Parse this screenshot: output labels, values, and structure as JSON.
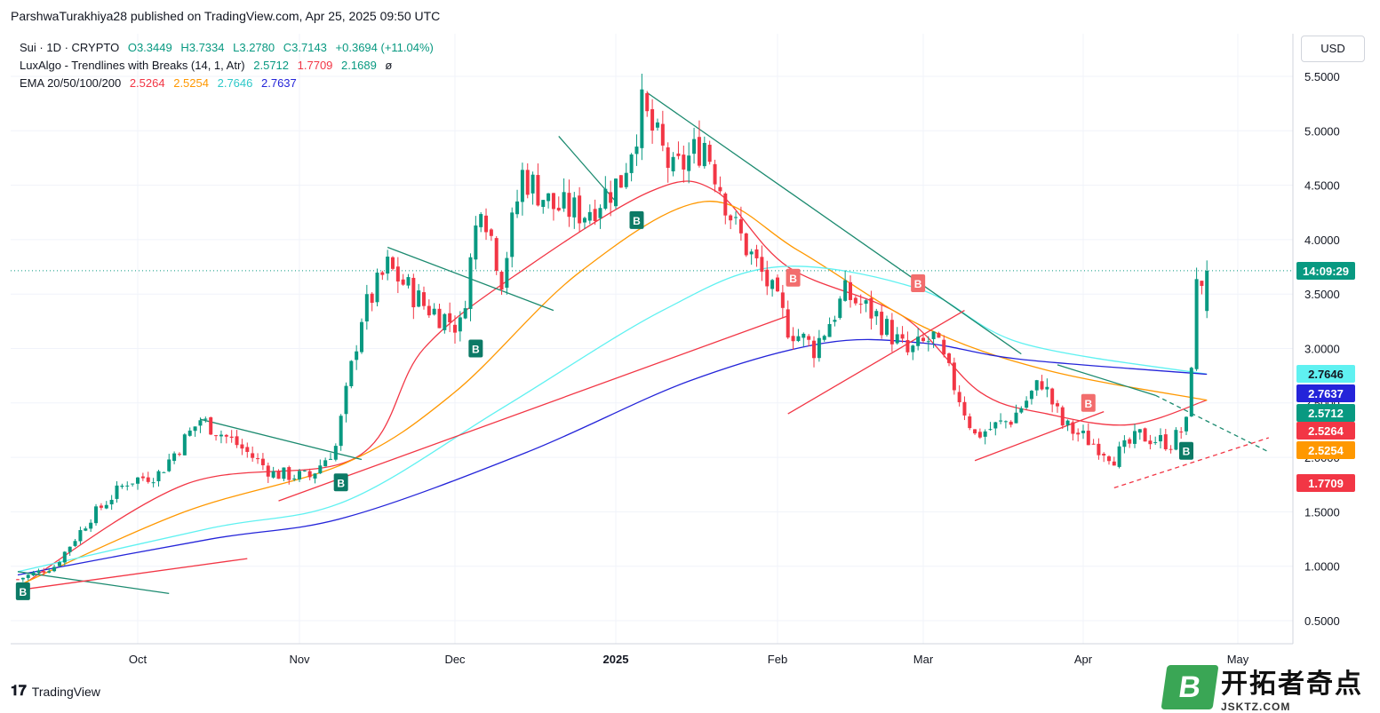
{
  "header": {
    "publisher": "ParshwaTurakhiya28 published on TradingView.com, Apr 25, 2025 09:50 UTC"
  },
  "legend": {
    "symbol": "Sui · 1D · CRYPTO",
    "open": "O3.3449",
    "high": "H3.7334",
    "low": "L3.2780",
    "close": "C3.7143",
    "change": "+0.3694 (+11.04%)",
    "indicator1_name": "LuxAlgo - Trendlines with Breaks (14, 1, Atr)",
    "ind1_v1": "2.5712",
    "ind1_v2": "1.7709",
    "ind1_v3": "2.1689",
    "ind1_sym": "ø",
    "indicator2_name": "EMA 20/50/100/200",
    "ema20": "2.5264",
    "ema50": "2.5254",
    "ema100": "2.7646",
    "ema200": "2.7637"
  },
  "currency": "USD",
  "branding": {
    "logo_text": "TradingView"
  },
  "watermark": {
    "logo_letter": "B",
    "title": "开拓者奇点",
    "subtitle": "JSKTZ.COM"
  },
  "colors": {
    "up": "#089981",
    "down": "#f23645",
    "ema20": "#f23645",
    "ema50": "#ff9800",
    "ema100": "#5ff1f1",
    "ema200": "#2424d9",
    "trend_down": "#1b8a6f",
    "trend_up": "#f23645"
  },
  "chart_data": {
    "type": "candlestick",
    "symbol": "Sui",
    "timeframe": "1D",
    "x_tick_labels": [
      "Oct",
      "Nov",
      "Dec",
      "2025",
      "Feb",
      "Mar",
      "Apr",
      "May"
    ],
    "y_ticks": [
      "0.5000",
      "1.0000",
      "1.5000",
      "2.0000",
      "2.5000",
      "3.0000",
      "3.5000",
      "4.0000",
      "4.5000",
      "5.0000",
      "5.5000"
    ],
    "ylim": [
      0.2,
      5.8
    ],
    "price_labels": [
      {
        "text": "14:09:29",
        "value": 3.7143,
        "color": "#089981"
      },
      {
        "text": "2.7646",
        "value": 2.7646,
        "color": "#5ff1f1"
      },
      {
        "text": "2.7637",
        "value": 2.7637,
        "color": "#2424d9"
      },
      {
        "text": "2.5712",
        "value": 2.5712,
        "color": "#089981"
      },
      {
        "text": "2.5264",
        "value": 2.5264,
        "color": "#f23645"
      },
      {
        "text": "2.5254",
        "value": 2.5254,
        "color": "#ff9800"
      },
      {
        "text": "1.7709",
        "value": 1.7709,
        "color": "#f23645"
      }
    ],
    "price_line": 3.7143,
    "price_path": [
      [
        "2024-09-08",
        0.88
      ],
      [
        "2024-09-15",
        1.0
      ],
      [
        "2024-09-22",
        1.45
      ],
      [
        "2024-09-29",
        1.78
      ],
      [
        "2024-10-05",
        1.85
      ],
      [
        "2024-10-13",
        2.35
      ],
      [
        "2024-10-20",
        2.12
      ],
      [
        "2024-10-27",
        1.85
      ],
      [
        "2024-11-03",
        1.82
      ],
      [
        "2024-11-08",
        2.1
      ],
      [
        "2024-11-13",
        3.3
      ],
      [
        "2024-11-18",
        3.75
      ],
      [
        "2024-11-25",
        3.4
      ],
      [
        "2024-12-02",
        3.2
      ],
      [
        "2024-12-06",
        4.4
      ],
      [
        "2024-12-10",
        3.65
      ],
      [
        "2024-12-14",
        4.6
      ],
      [
        "2024-12-20",
        4.3
      ],
      [
        "2024-12-26",
        4.25
      ],
      [
        "2025-01-02",
        4.55
      ],
      [
        "2025-01-06",
        5.2
      ],
      [
        "2025-01-12",
        4.6
      ],
      [
        "2025-01-18",
        4.9
      ],
      [
        "2025-01-24",
        4.1
      ],
      [
        "2025-01-30",
        3.6
      ],
      [
        "2025-02-03",
        3.2
      ],
      [
        "2025-02-08",
        3.0
      ],
      [
        "2025-02-14",
        3.5
      ],
      [
        "2025-02-20",
        3.3
      ],
      [
        "2025-02-26",
        2.95
      ],
      [
        "2025-03-03",
        3.1
      ],
      [
        "2025-03-08",
        2.55
      ],
      [
        "2025-03-11",
        2.2
      ],
      [
        "2025-03-18",
        2.35
      ],
      [
        "2025-03-24",
        2.7
      ],
      [
        "2025-03-28",
        2.3
      ],
      [
        "2025-04-04",
        2.1
      ],
      [
        "2025-04-07",
        2.0
      ],
      [
        "2025-04-12",
        2.2
      ],
      [
        "2025-04-18",
        2.13
      ],
      [
        "2025-04-21",
        2.3
      ],
      [
        "2025-04-22",
        2.9
      ],
      [
        "2025-04-23",
        3.55
      ],
      [
        "2025-04-25",
        3.7143
      ]
    ],
    "series": [
      {
        "name": "EMA 20",
        "color": "#f23645",
        "points": [
          [
            "2024-09-08",
            0.8
          ],
          [
            "2024-10-10",
            1.75
          ],
          [
            "2024-11-12",
            2.0
          ],
          [
            "2024-11-25",
            3.0
          ],
          [
            "2024-12-15",
            3.75
          ],
          [
            "2025-01-08",
            4.45
          ],
          [
            "2025-01-20",
            4.45
          ],
          [
            "2025-02-03",
            3.75
          ],
          [
            "2025-02-25",
            3.3
          ],
          [
            "2025-03-12",
            2.6
          ],
          [
            "2025-03-25",
            2.4
          ],
          [
            "2025-04-10",
            2.3
          ],
          [
            "2025-04-25",
            2.5264
          ]
        ]
      },
      {
        "name": "EMA 50",
        "color": "#ff9800",
        "points": [
          [
            "2024-09-08",
            0.82
          ],
          [
            "2024-10-10",
            1.5
          ],
          [
            "2024-11-10",
            1.95
          ],
          [
            "2024-12-01",
            2.6
          ],
          [
            "2024-12-25",
            3.7
          ],
          [
            "2025-01-18",
            4.35
          ],
          [
            "2025-02-05",
            3.9
          ],
          [
            "2025-03-01",
            3.2
          ],
          [
            "2025-03-25",
            2.8
          ],
          [
            "2025-04-25",
            2.5254
          ]
        ]
      },
      {
        "name": "EMA 100",
        "color": "#5ff1f1",
        "points": [
          [
            "2024-09-08",
            0.95
          ],
          [
            "2024-10-15",
            1.35
          ],
          [
            "2024-11-10",
            1.6
          ],
          [
            "2024-12-10",
            2.45
          ],
          [
            "2025-01-10",
            3.35
          ],
          [
            "2025-02-01",
            3.75
          ],
          [
            "2025-02-28",
            3.55
          ],
          [
            "2025-03-20",
            3.05
          ],
          [
            "2025-04-25",
            2.7646
          ]
        ]
      },
      {
        "name": "EMA 200",
        "color": "#2424d9",
        "points": [
          [
            "2024-09-08",
            0.92
          ],
          [
            "2024-10-15",
            1.25
          ],
          [
            "2024-11-10",
            1.45
          ],
          [
            "2024-12-15",
            2.05
          ],
          [
            "2025-01-15",
            2.7
          ],
          [
            "2025-02-10",
            3.05
          ],
          [
            "2025-03-01",
            3.05
          ],
          [
            "2025-03-20",
            2.9
          ],
          [
            "2025-04-25",
            2.7637
          ]
        ]
      }
    ],
    "trendlines": [
      {
        "dir": "down",
        "from": [
          "2024-09-08",
          0.95
        ],
        "to": [
          "2024-10-07",
          0.75
        ]
      },
      {
        "dir": "up",
        "from": [
          "2024-09-08",
          0.78
        ],
        "to": [
          "2024-10-22",
          1.07
        ]
      },
      {
        "dir": "down",
        "from": [
          "2024-10-13",
          2.35
        ],
        "to": [
          "2024-11-13",
          1.98
        ]
      },
      {
        "dir": "up",
        "from": [
          "2024-10-28",
          1.6
        ],
        "to": [
          "2025-02-03",
          3.3
        ]
      },
      {
        "dir": "down",
        "from": [
          "2024-11-18",
          3.93
        ],
        "to": [
          "2024-12-20",
          3.35
        ]
      },
      {
        "dir": "down",
        "from": [
          "2024-12-21",
          4.95
        ],
        "to": [
          "2025-01-01",
          4.35
        ]
      },
      {
        "dir": "down",
        "from": [
          "2025-01-07",
          5.35
        ],
        "to": [
          "2025-03-20",
          2.95
        ]
      },
      {
        "dir": "up",
        "from": [
          "2025-02-03",
          2.4
        ],
        "to": [
          "2025-03-09",
          3.35
        ]
      },
      {
        "dir": "up",
        "from": [
          "2025-03-11",
          1.97
        ],
        "to": [
          "2025-04-05",
          2.42
        ]
      },
      {
        "dir": "down",
        "from": [
          "2025-03-27",
          2.85
        ],
        "to": [
          "2025-04-15",
          2.57
        ]
      },
      {
        "dir": "down",
        "from": [
          "2025-04-15",
          2.57
        ],
        "to": [
          "2025-05-07",
          2.05
        ],
        "dashed": true
      },
      {
        "dir": "up",
        "from": [
          "2025-04-07",
          1.72
        ],
        "to": [
          "2025-05-07",
          2.18
        ],
        "dashed": true
      }
    ],
    "break_labels": [
      {
        "date": "2024-09-09",
        "value": 0.77,
        "text": "B",
        "kind": "bull"
      },
      {
        "date": "2024-11-09",
        "value": 1.77,
        "text": "B",
        "kind": "bull"
      },
      {
        "date": "2024-12-05",
        "value": 3.0,
        "text": "B",
        "kind": "bull"
      },
      {
        "date": "2025-01-05",
        "value": 4.18,
        "text": "B",
        "kind": "bear_alt"
      },
      {
        "date": "2025-02-04",
        "value": 3.65,
        "text": "B",
        "kind": "bear"
      },
      {
        "date": "2025-02-28",
        "value": 3.6,
        "text": "B",
        "kind": "bear"
      },
      {
        "date": "2025-04-02",
        "value": 2.5,
        "text": "B",
        "kind": "bear"
      },
      {
        "date": "2025-04-21",
        "value": 2.06,
        "text": "B",
        "kind": "bull"
      }
    ]
  }
}
